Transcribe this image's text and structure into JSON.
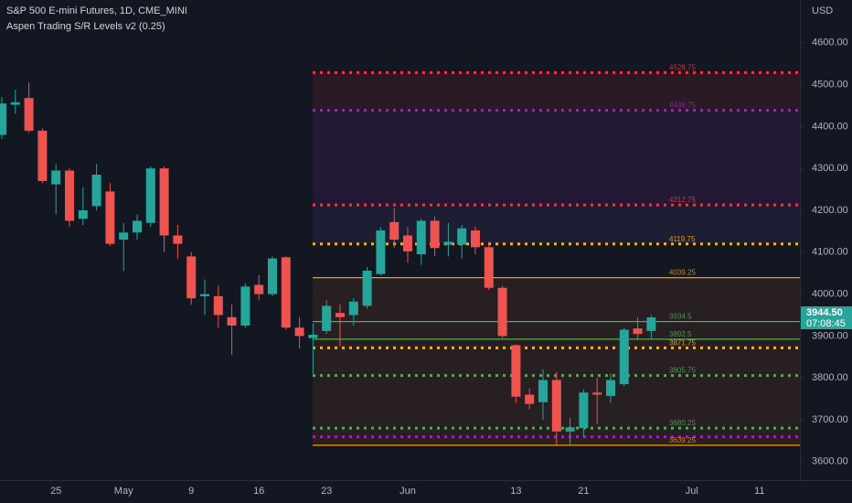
{
  "chart_data": {
    "type": "candlestick",
    "title": "S&P 500 E-mini Futures, 1D, CME_MINI",
    "subtitle": "Aspen Trading S/R Levels v2 (0.25)",
    "y_axis_label": "USD",
    "last_price": {
      "value": 3944.5,
      "label": "3944.50"
    },
    "countdown": "07:08:45",
    "up_color": "#26a69a",
    "down_color": "#ef5350",
    "categories": [
      null,
      null,
      null,
      null,
      "25",
      null,
      null,
      null,
      null,
      "May",
      null,
      null,
      null,
      null,
      "9",
      null,
      null,
      null,
      null,
      "16",
      null,
      null,
      null,
      null,
      "23",
      null,
      null,
      null,
      null,
      null,
      "Jun",
      null,
      null,
      null,
      null,
      null,
      null,
      null,
      "13",
      null,
      null,
      null,
      null,
      "21",
      null,
      null,
      null,
      null,
      null,
      null,
      null,
      "Jul",
      null,
      null,
      null,
      null,
      "11",
      null,
      null,
      null
    ],
    "open": [
      4380,
      4452,
      4468,
      4390,
      4262,
      4295,
      4180,
      4210,
      4245,
      4130,
      4147,
      4170,
      4300,
      4140,
      4090,
      3995,
      3995,
      3945,
      3925,
      4022,
      4000,
      4088,
      3920,
      3895,
      3912,
      3955,
      3950,
      3972,
      4048,
      4172,
      4140,
      4095,
      4175,
      4118,
      4118,
      4152,
      4112,
      4015,
      3878,
      3760,
      3742,
      3795,
      3672,
      3680,
      3765,
      3757,
      3785,
      3918,
      3912,
      null,
      null,
      null,
      null,
      null,
      null,
      null,
      null,
      null,
      null,
      null
    ],
    "high": [
      4470,
      4488,
      4505,
      4395,
      4310,
      4300,
      4255,
      4310,
      4265,
      4170,
      4190,
      4305,
      4305,
      4165,
      4100,
      4035,
      4020,
      3975,
      4025,
      4045,
      4090,
      4090,
      3945,
      3930,
      3985,
      3975,
      3990,
      4065,
      4160,
      4205,
      4160,
      4180,
      4185,
      4170,
      4165,
      4160,
      4125,
      4020,
      3880,
      3775,
      3820,
      3815,
      3705,
      3772,
      3800,
      3810,
      3920,
      3945,
      3950,
      null,
      null,
      null,
      null,
      null,
      null,
      null,
      null,
      null,
      null,
      null
    ],
    "low": [
      4370,
      4430,
      4385,
      4265,
      4190,
      4160,
      4165,
      4200,
      4115,
      4055,
      4130,
      4160,
      4100,
      4085,
      3975,
      3950,
      3920,
      3855,
      3920,
      3985,
      3995,
      3915,
      3870,
      3810,
      3905,
      3875,
      3925,
      3965,
      4045,
      4110,
      4075,
      4070,
      4090,
      4090,
      4085,
      4095,
      4010,
      3895,
      3740,
      3725,
      3700,
      3640,
      3640,
      3660,
      3690,
      3740,
      3780,
      3890,
      3895,
      null,
      null,
      null,
      null,
      null,
      null,
      null,
      null,
      null,
      null,
      null
    ],
    "close": [
      4455,
      4458,
      4390,
      4270,
      4295,
      4175,
      4200,
      4285,
      4120,
      4147,
      4175,
      4300,
      4140,
      4120,
      3990,
      4000,
      3950,
      3925,
      4018,
      4000,
      4085,
      3920,
      3900,
      3903,
      3972,
      3945,
      3982,
      4056,
      4152,
      4130,
      4102,
      4175,
      4110,
      4125,
      4157,
      4112,
      4015,
      3900,
      3755,
      3738,
      3795,
      3672,
      3682,
      3765,
      3760,
      3795,
      3915,
      3905,
      3944.5,
      null,
      null,
      null,
      null,
      null,
      null,
      null,
      null,
      null,
      null,
      null
    ],
    "levels": [
      {
        "value": 4528.75,
        "label": "4528.75",
        "color": "#f23645",
        "style": "dotted",
        "fill": "rgba(242,54,69,0.10)"
      },
      {
        "value": 4438.75,
        "label": "4438.75",
        "color": "#9c27b0",
        "style": "dotted",
        "fill": "rgba(156,39,176,0.13)"
      },
      {
        "value": 4212.75,
        "label": "4212.75",
        "color": "#f23645",
        "style": "dotted",
        "fill": "rgba(90,70,160,0.14)"
      },
      {
        "value": 4119.75,
        "label": "4119.75",
        "color": "#ffb300",
        "style": "dotted"
      },
      {
        "value": 4039.25,
        "label": "4039.25",
        "color": "#ff9800",
        "style": "solid",
        "fill": "rgba(255,120,40,0.09)"
      },
      {
        "value": 3934.5,
        "label": "3934.5",
        "color": "#4caf50",
        "style": "solid",
        "fill": "rgba(255,120,40,0.09)"
      },
      {
        "value": 3892.5,
        "label": "3892.5",
        "color": "#4caf50",
        "style": "solid",
        "fill": "rgba(255,120,40,0.09)"
      },
      {
        "value": 3871.75,
        "label": "3871.75",
        "color": "#ffb300",
        "style": "dotted",
        "fill": "rgba(255,120,40,0.09)"
      },
      {
        "value": 3805.75,
        "label": "3805.75",
        "color": "#4caf50",
        "style": "dotted",
        "fill": "rgba(255,120,40,0.09)"
      },
      {
        "value": 3680.25,
        "label": "3680.25",
        "color": "#4caf50",
        "style": "dotted",
        "fill": "rgba(255,120,40,0.09)"
      },
      {
        "value": 3659.5,
        "color": "#9c27b0",
        "style": "dotted",
        "fill": "rgba(255,120,40,0.09)"
      },
      {
        "value": 3639.25,
        "label": "3639.25",
        "color": "#ff9800",
        "style": "solid"
      }
    ],
    "ylim": [
      3556,
      4702
    ],
    "yticks": [
      {
        "value": 3600,
        "label": "3600.00"
      },
      {
        "value": 3700,
        "label": "3700.00"
      },
      {
        "value": 3800,
        "label": "3800.00"
      },
      {
        "value": 3900,
        "label": "3900.00"
      },
      {
        "value": 4000,
        "label": "4000.00"
      },
      {
        "value": 4100,
        "label": "4100.00"
      },
      {
        "value": 4200,
        "label": "4200.00"
      },
      {
        "value": 4300,
        "label": "4300.00"
      },
      {
        "value": 4400,
        "label": "4400.00"
      },
      {
        "value": 4500,
        "label": "4500.00"
      },
      {
        "value": 4600,
        "label": "4600.00"
      }
    ],
    "grid": false
  }
}
